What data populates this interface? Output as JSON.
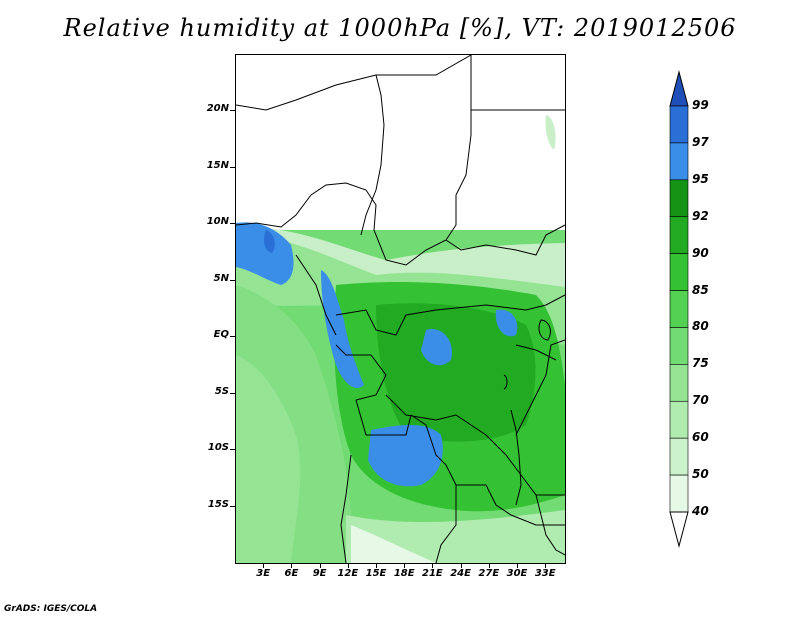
{
  "title": "Relative humidity at 1000hPa [%], VT: 2019012506",
  "credit": "GrADS: IGES/COLA",
  "map": {
    "lon_range": [
      0,
      35
    ],
    "lat_range": [
      -20,
      25
    ],
    "lat_ticks": [
      {
        "lat": 20,
        "label": "20N"
      },
      {
        "lat": 15,
        "label": "15N"
      },
      {
        "lat": 10,
        "label": "10N"
      },
      {
        "lat": 5,
        "label": "5N"
      },
      {
        "lat": 0,
        "label": "EQ"
      },
      {
        "lat": -5,
        "label": "5S"
      },
      {
        "lat": -10,
        "label": "10S"
      },
      {
        "lat": -15,
        "label": "15S"
      }
    ],
    "lon_ticks": [
      {
        "lon": 3,
        "label": "3E"
      },
      {
        "lon": 6,
        "label": "6E"
      },
      {
        "lon": 9,
        "label": "9E"
      },
      {
        "lon": 12,
        "label": "12E"
      },
      {
        "lon": 15,
        "label": "15E"
      },
      {
        "lon": 18,
        "label": "18E"
      },
      {
        "lon": 21,
        "label": "21E"
      },
      {
        "lon": 24,
        "label": "24E"
      },
      {
        "lon": 27,
        "label": "27E"
      },
      {
        "lon": 30,
        "label": "30E"
      },
      {
        "lon": 33,
        "label": "33E"
      }
    ]
  },
  "colorbar": {
    "levels": [
      {
        "label": "99",
        "value": 99
      },
      {
        "label": "97",
        "value": 97
      },
      {
        "label": "95",
        "value": 95
      },
      {
        "label": "92",
        "value": 92
      },
      {
        "label": "90",
        "value": 90
      },
      {
        "label": "85",
        "value": 85
      },
      {
        "label": "80",
        "value": 80
      },
      {
        "label": "75",
        "value": 75
      },
      {
        "label": "70",
        "value": 70
      },
      {
        "label": "60",
        "value": 60
      },
      {
        "label": "50",
        "value": 50
      },
      {
        "label": "40",
        "value": 40
      }
    ],
    "colors": [
      "#ffffff",
      "#e6f9e6",
      "#ccf2cc",
      "#b0ebb0",
      "#94e494",
      "#73db73",
      "#52d152",
      "#34c234",
      "#22aa22",
      "#149314",
      "#3a8ee8",
      "#2a6fd6",
      "#1f4fb8"
    ]
  }
}
